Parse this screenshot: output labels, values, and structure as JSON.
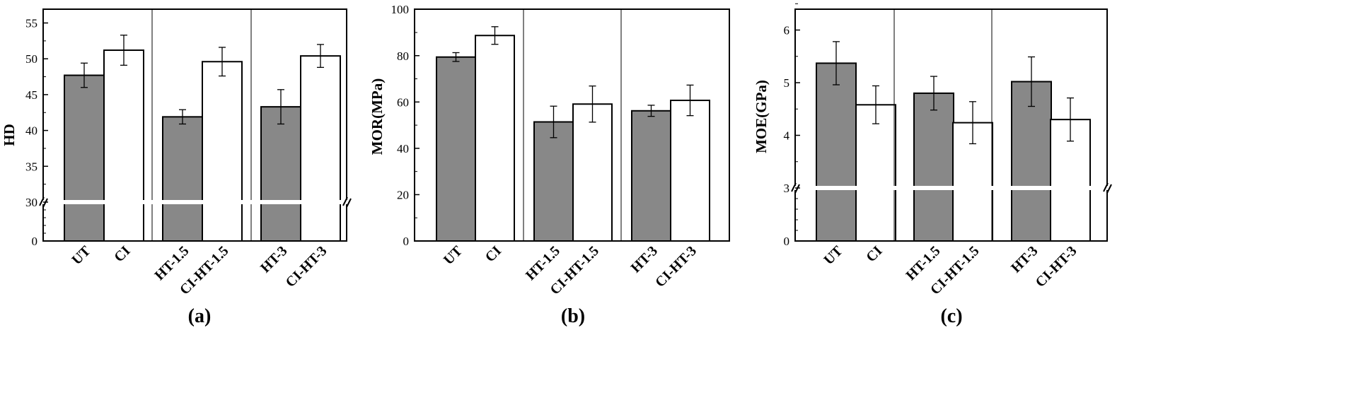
{
  "colors": {
    "filled": "#888888",
    "open": "#ffffff",
    "stroke": "#000000"
  },
  "chart_data": [
    {
      "type": "bar",
      "panel_label": "(a)",
      "ylabel": "HD",
      "categories": [
        "UT",
        "CI",
        "HT-1.5",
        "CI-HT-1.5",
        "HT-3",
        "CI-HT-3"
      ],
      "fill_style": [
        "filled",
        "open",
        "filled",
        "open",
        "filled",
        "open"
      ],
      "values": [
        47.7,
        51.2,
        41.9,
        49.6,
        43.3,
        50.4
      ],
      "errors": [
        1.7,
        2.1,
        1.0,
        2.0,
        2.4,
        1.6
      ],
      "axis_break": {
        "from": 0,
        "to": 30
      },
      "lower_ticks": [
        "0"
      ],
      "upper_ticks": [
        "30",
        "35",
        "40",
        "45",
        "50",
        "55"
      ],
      "ylim": [
        0,
        57
      ]
    },
    {
      "type": "bar",
      "panel_label": "(b)",
      "ylabel": "MOR(MPa)",
      "categories": [
        "UT",
        "CI",
        "HT-1.5",
        "CI-HT-1.5",
        "HT-3",
        "CI-HT-3"
      ],
      "fill_style": [
        "filled",
        "open",
        "filled",
        "open",
        "filled",
        "open"
      ],
      "values": [
        79.4,
        88.7,
        51.4,
        59.1,
        56.2,
        60.7
      ],
      "errors": [
        1.9,
        3.8,
        6.8,
        7.8,
        2.4,
        6.6
      ],
      "ticks": [
        "0",
        "20",
        "40",
        "60",
        "80",
        "100"
      ],
      "ylim": [
        0,
        100
      ]
    },
    {
      "type": "bar",
      "panel_label": "(c)",
      "ylabel": "MOE(GPa)",
      "categories": [
        "UT",
        "CI",
        "HT-1.5",
        "CI-HT-1.5",
        "HT-3",
        "CI-HT-3"
      ],
      "fill_style": [
        "filled",
        "open",
        "filled",
        "open",
        "filled",
        "open"
      ],
      "values": [
        5.37,
        4.58,
        4.8,
        4.24,
        5.02,
        4.3
      ],
      "errors": [
        0.41,
        0.36,
        0.32,
        0.4,
        0.47,
        0.41
      ],
      "axis_break": {
        "from": 0,
        "to": 3
      },
      "lower_ticks": [
        "0"
      ],
      "upper_ticks": [
        "3",
        "4",
        "5",
        "6"
      ],
      "ylim": [
        0,
        6.5
      ]
    }
  ]
}
